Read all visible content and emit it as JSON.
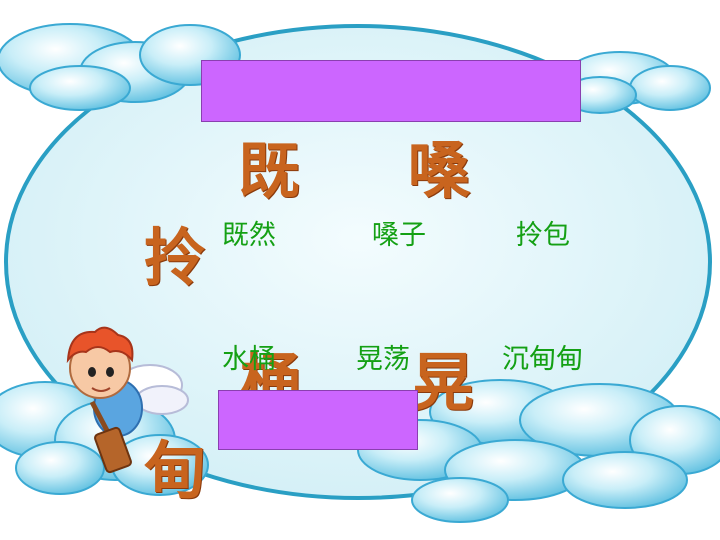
{
  "slide": {
    "big_chars": [
      "既",
      "嗓",
      "拎",
      "桶",
      "晃",
      "甸"
    ],
    "words": [
      "既然",
      "嗓子",
      "拎包",
      "水桶",
      "晃荡",
      "沉甸甸"
    ]
  },
  "colors": {
    "big_char": "#c8641e",
    "word": "#14a014",
    "purple_box": "#cc66ff",
    "frame_fill": "#e4f6f9",
    "frame_stroke": "#2a9fc4",
    "cloud": "#9fdcef"
  },
  "decorations": {
    "character_icon": "cartoon-cupid-with-hammer-icon"
  }
}
